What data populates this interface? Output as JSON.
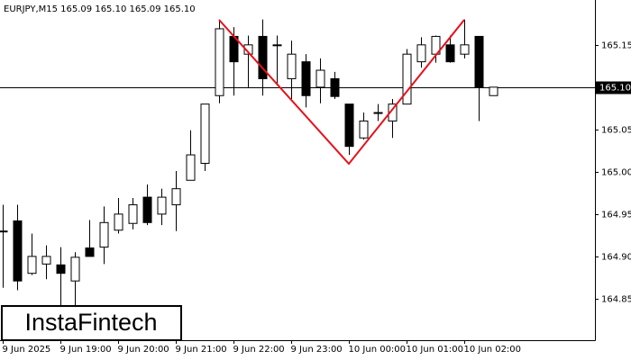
{
  "chart_data": {
    "type": "candlestick",
    "title": "EURJPY,M15  165.09 165.10 165.09 165.10",
    "watermark": "InstaFintech",
    "categories": [
      "9 Jun 2025",
      null,
      null,
      null,
      "9 Jun 19:00",
      null,
      null,
      null,
      "9 Jun 20:00",
      null,
      null,
      null,
      "9 Jun 21:00",
      null,
      null,
      null,
      "9 Jun 22:00",
      null,
      null,
      null,
      "9 Jun 23:00",
      null,
      null,
      null,
      "10 Jun 00:00",
      null,
      null,
      null,
      "10 Jun 01:00",
      null,
      null,
      null,
      "10 Jun 02:00",
      null,
      null
    ],
    "open": [
      164.93,
      164.942,
      164.88,
      164.891,
      164.89,
      164.871,
      164.91,
      164.911,
      164.931,
      164.939,
      164.97,
      164.95,
      164.961,
      164.99,
      165.01,
      165.09,
      165.16,
      165.139,
      165.16,
      165.15,
      165.11,
      165.13,
      165.1,
      165.11,
      165.08,
      165.04,
      165.07,
      165.06,
      165.08,
      165.13,
      165.139,
      165.15,
      165.139,
      165.16,
      165.09
    ],
    "high": [
      164.961,
      164.961,
      164.927,
      164.913,
      164.911,
      164.905,
      164.943,
      164.959,
      164.969,
      164.969,
      164.985,
      164.98,
      165.001,
      165.049,
      165.08,
      165.18,
      165.171,
      165.161,
      165.18,
      165.161,
      165.155,
      165.139,
      165.134,
      165.118,
      165.08,
      165.07,
      165.08,
      165.086,
      165.145,
      165.159,
      165.161,
      165.161,
      165.18,
      165.16,
      165.1
    ],
    "low": [
      164.863,
      164.86,
      164.878,
      164.873,
      164.836,
      164.836,
      164.9,
      164.891,
      164.927,
      164.932,
      164.937,
      164.937,
      164.93,
      164.99,
      165.001,
      165.081,
      165.09,
      165.1,
      165.09,
      165.102,
      165.086,
      165.076,
      165.081,
      165.086,
      165.02,
      165.038,
      165.06,
      165.04,
      165.08,
      165.123,
      165.129,
      165.129,
      165.134,
      165.06,
      165.09
    ],
    "close": [
      164.93,
      164.871,
      164.9,
      164.9,
      164.88,
      164.899,
      164.9,
      164.94,
      164.95,
      164.961,
      164.94,
      164.97,
      164.98,
      165.02,
      165.08,
      165.169,
      165.13,
      165.15,
      165.11,
      165.15,
      165.139,
      165.09,
      165.12,
      165.089,
      165.03,
      165.06,
      165.07,
      165.08,
      165.139,
      165.15,
      165.16,
      165.13,
      165.15,
      165.1,
      165.1
    ],
    "ylim": [
      164.801,
      165.203
    ],
    "yticks": [
      164.85,
      {
        "value": 164.9,
        "label": "164.90"
      },
      164.95,
      {
        "value": 165.0,
        "label": "165.00"
      },
      165.05,
      {
        "value": 165.1,
        "label": "165.10"
      },
      165.15
    ],
    "current_price": {
      "value": 165.1,
      "label": "165.10"
    },
    "up_color": "#ffffff",
    "down_color": "#000000",
    "pattern_color": "#e8101a"
  }
}
